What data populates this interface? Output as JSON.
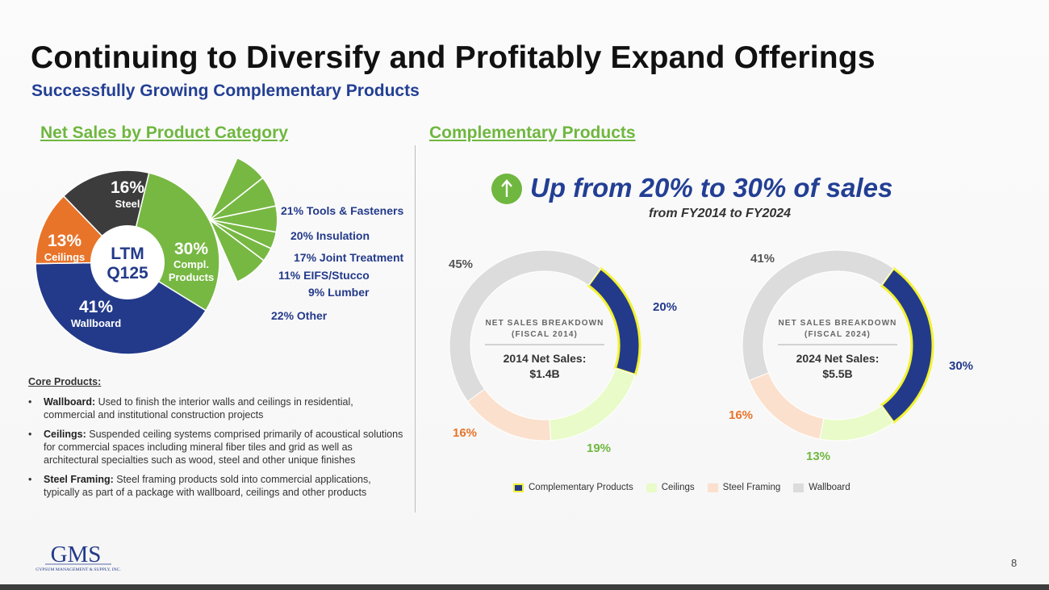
{
  "title": "Continuing to Diversify and Profitably Expand Offerings",
  "subtitle": "Successfully Growing Complementary Products",
  "left_section_title": "Net Sales by Product Category",
  "right_section_title": "Complementary Products",
  "headline": "Up from 20% to 30% of sales",
  "headline_sub": "from FY2014 to FY2024",
  "core_products": {
    "heading": "Core Products:",
    "items": [
      {
        "bullet": "•",
        "term": "Wallboard:",
        "text": " Used to finish the interior walls and ceilings in residential, commercial and institutional construction projects"
      },
      {
        "bullet": "•",
        "term": "Ceilings:",
        "text": " Suspended ceiling systems comprised primarily of acoustical solutions for commercial spaces including mineral fiber tiles and grid as well as architectural specialties such as wood, steel and other unique finishes"
      },
      {
        "bullet": "•",
        "term": "Steel Framing:",
        "text": " Steel framing products sold into commercial applications, typically as part of a package with wallboard, ceilings and other products"
      }
    ]
  },
  "logo": {
    "name": "GMS",
    "tagline": "GYPSUM MANAGEMENT & SUPPLY, INC."
  },
  "page_number": "8",
  "colors": {
    "wallboard": "#233a8a",
    "complementary": "#77b843",
    "steel": "#3c3c3c",
    "ceilings": "#e8742a",
    "title_blue": "#233f94",
    "green": "#6fb73f",
    "donut_comp": "#233a8a",
    "donut_ceil": "#e9fbc9",
    "donut_steel": "#fbe0cd",
    "donut_wall": "#dcdcdc",
    "highlight": "#f2f230"
  },
  "chart_data": [
    {
      "type": "pie",
      "title": "Net Sales by Product Category",
      "center_label": [
        "LTM",
        "Q125"
      ],
      "slices": [
        {
          "key": "steel",
          "pct": 16,
          "label": "16%",
          "name": "Steel"
        },
        {
          "key": "complementary",
          "pct": 30,
          "label": "30%",
          "name": "Compl. Products",
          "name_lines": [
            "Compl.",
            "Products"
          ]
        },
        {
          "key": "wallboard",
          "pct": 41,
          "label": "41%",
          "name": "Wallboard"
        },
        {
          "key": "ceilings",
          "pct": 13,
          "label": "13%",
          "name": "Ceilings"
        }
      ],
      "breakdown_of": "Compl. Products",
      "breakdown": [
        {
          "pct": 21,
          "label": "21%",
          "name": "Tools & Fasteners"
        },
        {
          "pct": 20,
          "label": "20%",
          "name": "Insulation"
        },
        {
          "pct": 17,
          "label": "17%",
          "name": "Joint Treatment"
        },
        {
          "pct": 11,
          "label": "11%",
          "name": "EIFS/Stucco"
        },
        {
          "pct": 9,
          "label": "9%",
          "name": "Lumber"
        },
        {
          "pct": 22,
          "label": "22%",
          "name": "Other"
        }
      ]
    },
    {
      "type": "pie",
      "variant": "donut",
      "title_lines": [
        "NET SALES BREAKDOWN",
        "(FISCAL 2014)"
      ],
      "total_lines": [
        "2014 Net Sales:",
        "$1.4B"
      ],
      "slices": [
        {
          "key": "comp",
          "name": "Complementary Products",
          "pct": 20,
          "label": "20%"
        },
        {
          "key": "ceil",
          "name": "Ceilings",
          "pct": 19,
          "label": "19%"
        },
        {
          "key": "steel",
          "name": "Steel Framing",
          "pct": 16,
          "label": "16%"
        },
        {
          "key": "wall",
          "name": "Wallboard",
          "pct": 45,
          "label": "45%"
        }
      ]
    },
    {
      "type": "pie",
      "variant": "donut",
      "title_lines": [
        "NET SALES BREAKDOWN",
        "(FISCAL 2024)"
      ],
      "total_lines": [
        "2024 Net Sales:",
        "$5.5B"
      ],
      "slices": [
        {
          "key": "comp",
          "name": "Complementary Products",
          "pct": 30,
          "label": "30%"
        },
        {
          "key": "ceil",
          "name": "Ceilings",
          "pct": 13,
          "label": "13%"
        },
        {
          "key": "steel",
          "name": "Steel Framing",
          "pct": 16,
          "label": "16%"
        },
        {
          "key": "wall",
          "name": "Wallboard",
          "pct": 41,
          "label": "41%"
        }
      ]
    }
  ],
  "legend": [
    {
      "key": "comp",
      "label": "Complementary Products"
    },
    {
      "key": "ceil",
      "label": "Ceilings"
    },
    {
      "key": "steel",
      "label": "Steel Framing"
    },
    {
      "key": "wall",
      "label": "Wallboard"
    }
  ]
}
